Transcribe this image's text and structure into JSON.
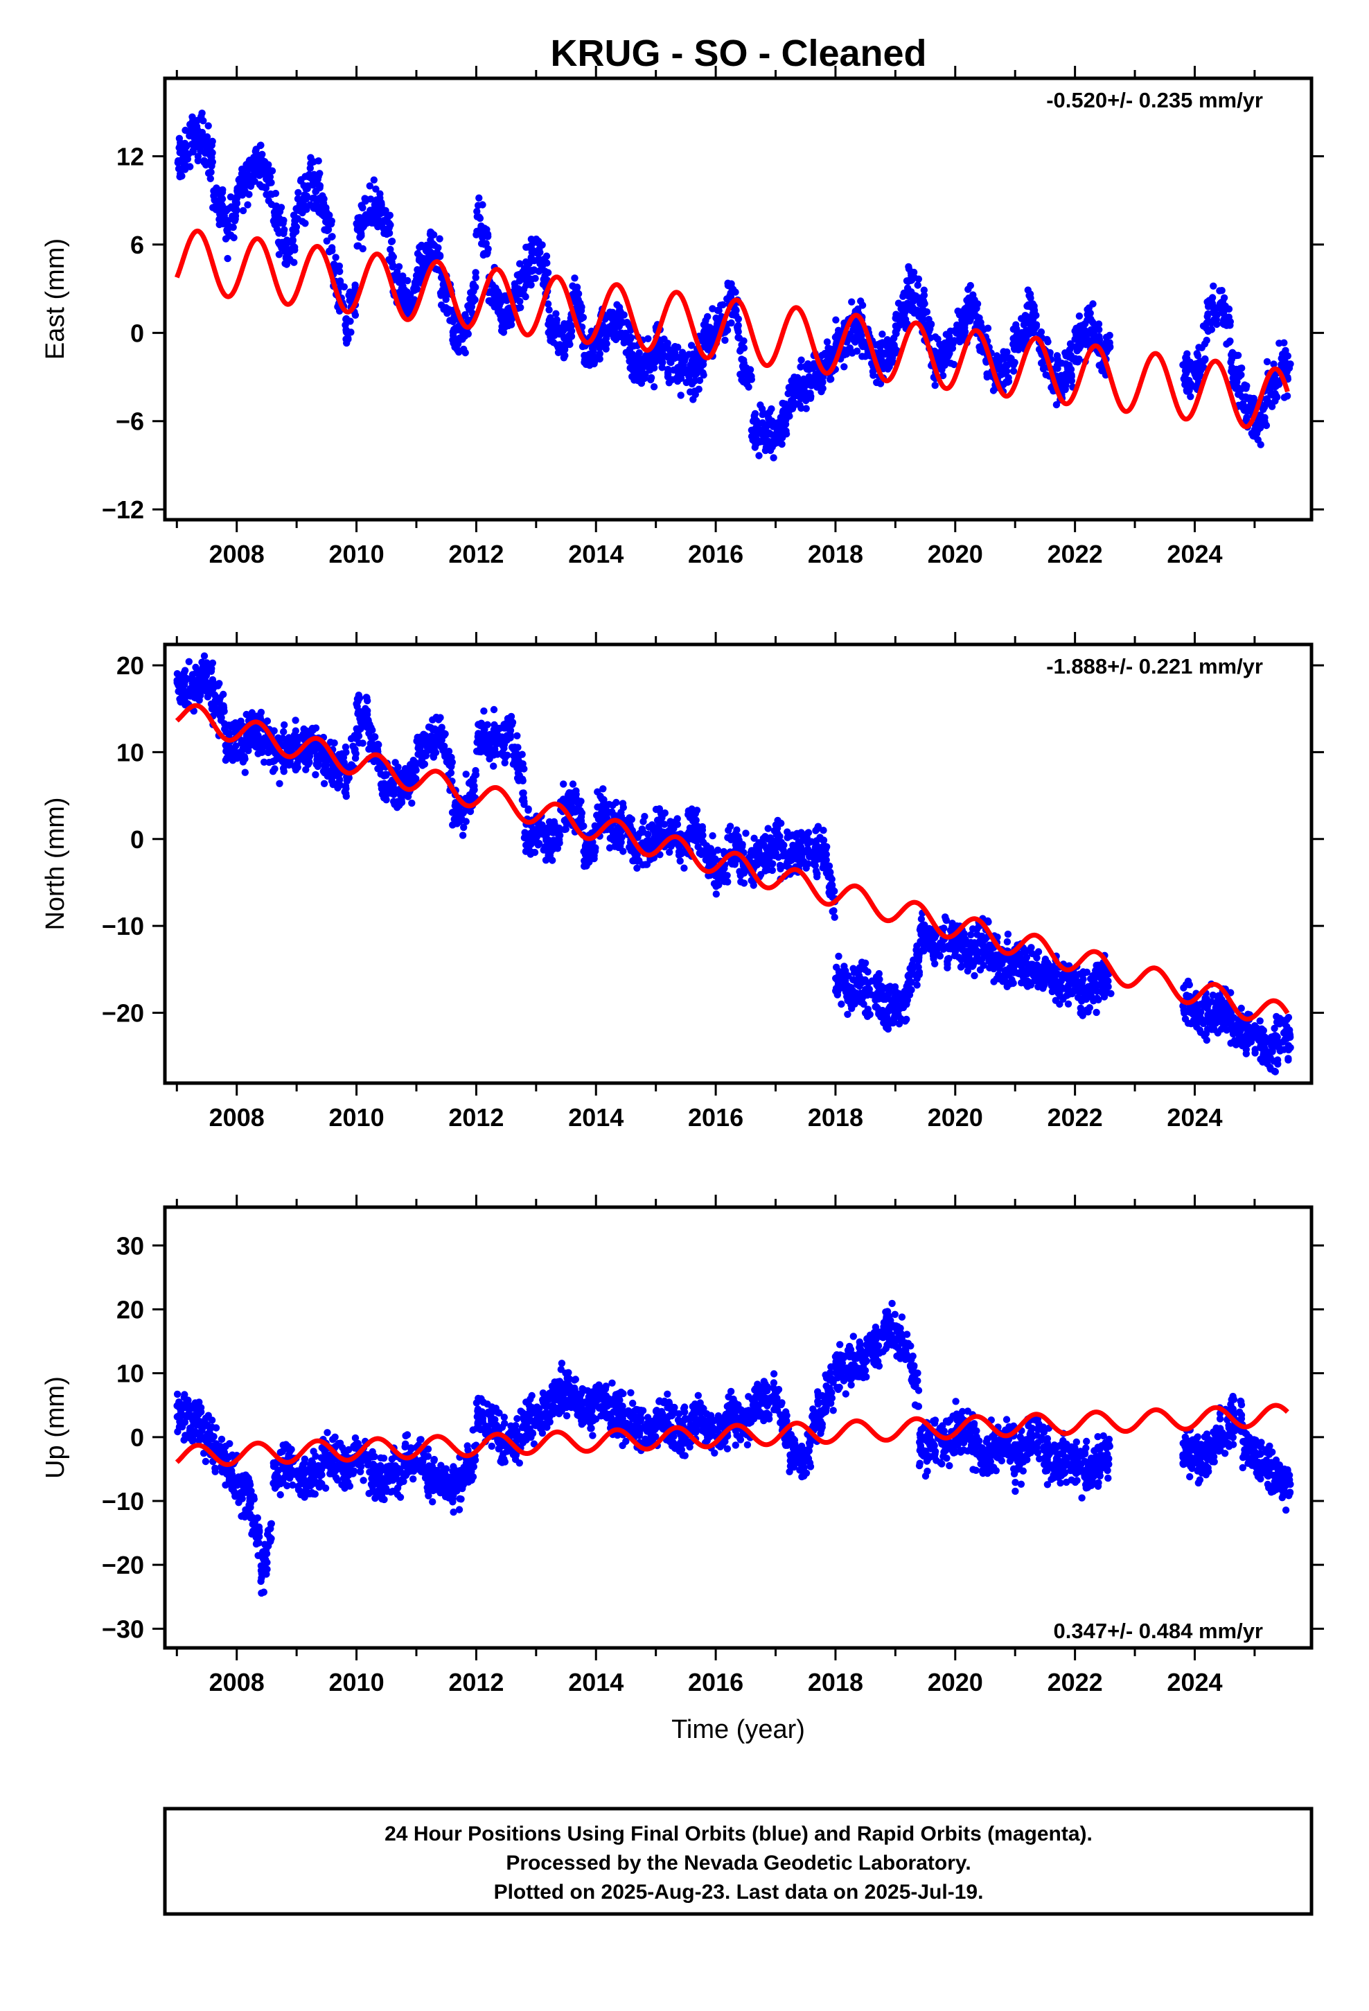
{
  "title": "KRUG  - SO - Cleaned",
  "footer": {
    "lines": [
      "24 Hour Positions Using Final Orbits (blue) and Rapid Orbits (magenta).",
      "Processed by the Nevada Geodetic Laboratory.",
      "Plotted on 2025-Aug-23. Last data on 2025-Jul-19."
    ]
  },
  "colors": {
    "data": "#0000ff",
    "model": "#ff0000",
    "axis": "#000000"
  },
  "chart_data": [
    {
      "type": "scatter",
      "id": "east",
      "ylabel": "East (mm)",
      "xlabel": "",
      "rate_label": "-0.520+/- 0.235 mm/yr",
      "rate_position": "top-right",
      "xlim": [
        2006.8,
        2025.95
      ],
      "ylim": [
        -12.7,
        17.3
      ],
      "xticks": [
        2008,
        2010,
        2012,
        2014,
        2016,
        2018,
        2020,
        2022,
        2024
      ],
      "xtick_labels": [
        "2008",
        "2010",
        "2012",
        "2014",
        "2016",
        "2018",
        "2020",
        "2022",
        "2024"
      ],
      "yticks": [
        -12,
        -6,
        0,
        6,
        12
      ],
      "ytick_labels": [
        "−12",
        "−6",
        "0",
        "6",
        "12"
      ],
      "grid": false,
      "series": [
        {
          "kind": "points",
          "x": [
            2007.1,
            2007.3,
            2007.5,
            2007.7,
            2007.9,
            2008.1,
            2008.3,
            2008.5,
            2008.7,
            2008.9,
            2009.1,
            2009.3,
            2009.5,
            2009.7,
            2009.9,
            2010.1,
            2010.3,
            2010.5,
            2010.7,
            2010.9,
            2011.1,
            2011.3,
            2011.5,
            2011.7,
            2011.9,
            2012.1,
            2012.3,
            2012.5,
            2012.7,
            2012.9,
            2013.1,
            2013.3,
            2013.5,
            2013.7,
            2013.9,
            2014.1,
            2014.3,
            2014.5,
            2014.7,
            2014.9,
            2015.1,
            2015.3,
            2015.5,
            2015.7,
            2015.9,
            2016.1,
            2016.3,
            2016.5,
            2016.7,
            2016.9,
            2017.1,
            2017.3,
            2017.5,
            2017.7,
            2017.9,
            2018.1,
            2018.3,
            2018.5,
            2018.7,
            2018.9,
            2019.1,
            2019.3,
            2019.5,
            2019.7,
            2019.9,
            2020.1,
            2020.3,
            2020.5,
            2020.7,
            2020.9,
            2021.1,
            2021.3,
            2021.5,
            2021.7,
            2021.9,
            2022.1,
            2022.3,
            2022.5,
            2023.9,
            2024.1,
            2024.3,
            2024.5,
            2024.7,
            2024.9,
            2025.1,
            2025.3,
            2025.5
          ],
          "y": [
            11.5,
            13.0,
            13.8,
            9.5,
            6.5,
            10.0,
            11.0,
            11.5,
            8.0,
            5.5,
            8.5,
            10.5,
            9.0,
            4.0,
            -0.5,
            7.0,
            8.5,
            8.0,
            3.5,
            1.5,
            4.0,
            6.0,
            3.5,
            0.0,
            -0.5,
            8.0,
            3.0,
            1.0,
            2.5,
            4.0,
            6.0,
            1.0,
            -1.0,
            2.5,
            -1.5,
            -0.5,
            1.0,
            0.5,
            -2.0,
            -2.5,
            -0.5,
            -2.0,
            -2.5,
            -3.0,
            0.0,
            -0.5,
            3.0,
            -1.5,
            -6.0,
            -7.0,
            -6.5,
            -4.5,
            -3.5,
            -3.0,
            -2.5,
            -1.0,
            0.0,
            0.5,
            -2.0,
            -2.0,
            0.5,
            3.0,
            2.0,
            -2.0,
            -1.5,
            0.0,
            2.0,
            0.0,
            -3.0,
            -2.5,
            -0.5,
            1.5,
            -1.0,
            -3.0,
            -3.0,
            -1.0,
            0.5,
            -1.5,
            -2.5,
            -3.0,
            1.0,
            2.5,
            -2.5,
            -4.5,
            -6.5,
            -4.0,
            -2.5
          ]
        },
        {
          "kind": "model",
          "trend_intercept_2007": 5.0,
          "trend_slope_mm_per_yr": -0.52,
          "annual_amplitude_mm": 2.1,
          "x_end": 2025.55
        }
      ]
    },
    {
      "type": "scatter",
      "id": "north",
      "ylabel": "North (mm)",
      "xlabel": "",
      "rate_label": "-1.888+/- 0.221 mm/yr",
      "rate_position": "top-right",
      "xlim": [
        2006.8,
        2025.95
      ],
      "ylim": [
        -28.1,
        22.4
      ],
      "xticks": [
        2008,
        2010,
        2012,
        2014,
        2016,
        2018,
        2020,
        2022,
        2024
      ],
      "xtick_labels": [
        "2008",
        "2010",
        "2012",
        "2014",
        "2016",
        "2018",
        "2020",
        "2022",
        "2024"
      ],
      "yticks": [
        -20,
        -10,
        0,
        10,
        20
      ],
      "ytick_labels": [
        "−20",
        "−10",
        "0",
        "10",
        "20"
      ],
      "grid": false,
      "series": [
        {
          "kind": "points",
          "x": [
            2007.1,
            2007.3,
            2007.5,
            2007.7,
            2007.9,
            2008.1,
            2008.3,
            2008.5,
            2008.7,
            2008.9,
            2009.1,
            2009.3,
            2009.5,
            2009.7,
            2009.9,
            2010.1,
            2010.3,
            2010.5,
            2010.7,
            2010.9,
            2011.1,
            2011.3,
            2011.5,
            2011.7,
            2011.9,
            2012.1,
            2012.3,
            2012.5,
            2012.7,
            2012.9,
            2013.1,
            2013.3,
            2013.5,
            2013.7,
            2013.9,
            2014.1,
            2014.3,
            2014.5,
            2014.7,
            2014.9,
            2015.1,
            2015.3,
            2015.5,
            2015.7,
            2015.9,
            2016.1,
            2016.3,
            2016.5,
            2016.7,
            2016.9,
            2017.1,
            2017.3,
            2017.5,
            2017.7,
            2017.9,
            2018.1,
            2018.3,
            2018.5,
            2018.7,
            2018.9,
            2019.1,
            2019.3,
            2019.5,
            2019.7,
            2019.9,
            2020.1,
            2020.3,
            2020.5,
            2020.7,
            2020.9,
            2021.1,
            2021.3,
            2021.5,
            2021.7,
            2021.9,
            2022.1,
            2022.3,
            2022.5,
            2023.9,
            2024.1,
            2024.3,
            2024.5,
            2024.7,
            2024.9,
            2025.1,
            2025.3,
            2025.5
          ],
          "y": [
            18.0,
            17.0,
            19.0,
            16.5,
            11.0,
            11.0,
            12.0,
            12.0,
            10.0,
            10.0,
            10.5,
            10.5,
            9.0,
            8.5,
            7.0,
            14.0,
            12.0,
            7.0,
            6.0,
            6.0,
            10.5,
            11.5,
            12.0,
            3.0,
            3.0,
            12.0,
            11.0,
            11.5,
            12.0,
            0.5,
            1.0,
            -1.0,
            4.0,
            4.5,
            -2.0,
            3.0,
            1.5,
            1.5,
            0.0,
            -1.0,
            1.5,
            0.5,
            -0.5,
            1.5,
            -2.0,
            -5.0,
            -1.0,
            -2.0,
            -3.0,
            -2.0,
            -1.0,
            -1.5,
            -1.0,
            -1.5,
            -1.0,
            -16.5,
            -17.5,
            -17.0,
            -18.0,
            -19.0,
            -19.5,
            -17.0,
            -11.0,
            -12.0,
            -11.0,
            -12.0,
            -13.0,
            -12.0,
            -13.5,
            -14.5,
            -14.0,
            -15.0,
            -15.0,
            -16.5,
            -16.0,
            -17.0,
            -17.5,
            -16.0,
            -19.0,
            -20.0,
            -20.5,
            -19.0,
            -21.5,
            -22.5,
            -23.0,
            -24.5,
            -22.5
          ]
        },
        {
          "kind": "model",
          "trend_intercept_2007": 14.5,
          "trend_slope_mm_per_yr": -1.888,
          "annual_amplitude_mm": 1.5,
          "x_end": 2025.55
        }
      ]
    },
    {
      "type": "scatter",
      "id": "up",
      "ylabel": "Up (mm)",
      "xlabel": "Time (year)",
      "rate_label": "0.347+/- 0.484 mm/yr",
      "rate_position": "bottom-right",
      "xlim": [
        2006.8,
        2025.95
      ],
      "ylim": [
        -33.0,
        36.0
      ],
      "xticks": [
        2008,
        2010,
        2012,
        2014,
        2016,
        2018,
        2020,
        2022,
        2024
      ],
      "xtick_labels": [
        "2008",
        "2010",
        "2012",
        "2014",
        "2016",
        "2018",
        "2020",
        "2022",
        "2024"
      ],
      "yticks": [
        -30,
        -20,
        -10,
        0,
        10,
        20,
        30
      ],
      "ytick_labels": [
        "−30",
        "−20",
        "−10",
        "0",
        "10",
        "20",
        "30"
      ],
      "grid": false,
      "series": [
        {
          "kind": "points",
          "x": [
            2007.1,
            2007.3,
            2007.5,
            2007.7,
            2007.9,
            2008.1,
            2008.3,
            2008.5,
            2008.7,
            2008.9,
            2009.1,
            2009.3,
            2009.5,
            2009.7,
            2009.9,
            2010.1,
            2010.3,
            2010.5,
            2010.7,
            2010.9,
            2011.1,
            2011.3,
            2011.5,
            2011.7,
            2011.9,
            2012.1,
            2012.3,
            2012.5,
            2012.7,
            2012.9,
            2013.1,
            2013.3,
            2013.5,
            2013.7,
            2013.9,
            2014.1,
            2014.3,
            2014.5,
            2014.7,
            2014.9,
            2015.1,
            2015.3,
            2015.5,
            2015.7,
            2015.9,
            2016.1,
            2016.3,
            2016.5,
            2016.7,
            2016.9,
            2017.1,
            2017.3,
            2017.5,
            2017.7,
            2017.9,
            2018.1,
            2018.3,
            2018.5,
            2018.7,
            2018.9,
            2019.1,
            2019.3,
            2019.5,
            2019.7,
            2019.9,
            2020.1,
            2020.3,
            2020.5,
            2020.7,
            2020.9,
            2021.1,
            2021.3,
            2021.5,
            2021.7,
            2021.9,
            2022.1,
            2022.3,
            2022.5,
            2023.9,
            2024.1,
            2024.3,
            2024.5,
            2024.7,
            2024.9,
            2025.1,
            2025.3,
            2025.5
          ],
          "y": [
            4.0,
            3.0,
            1.0,
            -2.0,
            -4.0,
            -8.0,
            -10.0,
            -22.0,
            -6.0,
            -4.0,
            -6.0,
            -7.0,
            -4.0,
            -3.0,
            -5.0,
            -2.0,
            -6.0,
            -7.0,
            -5.0,
            -4.0,
            -3.0,
            -6.0,
            -7.0,
            -8.0,
            -6.0,
            2.0,
            3.0,
            -1.0,
            0.0,
            2.0,
            4.0,
            5.0,
            8.0,
            6.0,
            3.0,
            6.0,
            4.0,
            3.0,
            2.0,
            0.0,
            3.0,
            2.0,
            0.0,
            4.0,
            1.0,
            0.0,
            4.0,
            2.0,
            5.0,
            6.0,
            5.0,
            -2.0,
            -5.0,
            3.0,
            6.0,
            10.0,
            11.0,
            12.0,
            14.0,
            17.0,
            15.0,
            14.0,
            -2.0,
            0.0,
            -1.0,
            1.0,
            0.0,
            -3.0,
            -2.0,
            0.0,
            -4.0,
            0.0,
            -1.0,
            -5.0,
            -3.0,
            -4.0,
            -6.0,
            -3.0,
            -2.0,
            -4.0,
            -2.0,
            0.0,
            3.0,
            -1.0,
            -3.0,
            -5.0,
            -7.0
          ]
        },
        {
          "kind": "model",
          "trend_intercept_2007": -3.0,
          "trend_slope_mm_per_yr": 0.347,
          "annual_amplitude_mm": 1.6,
          "x_end": 2025.55
        }
      ]
    }
  ]
}
